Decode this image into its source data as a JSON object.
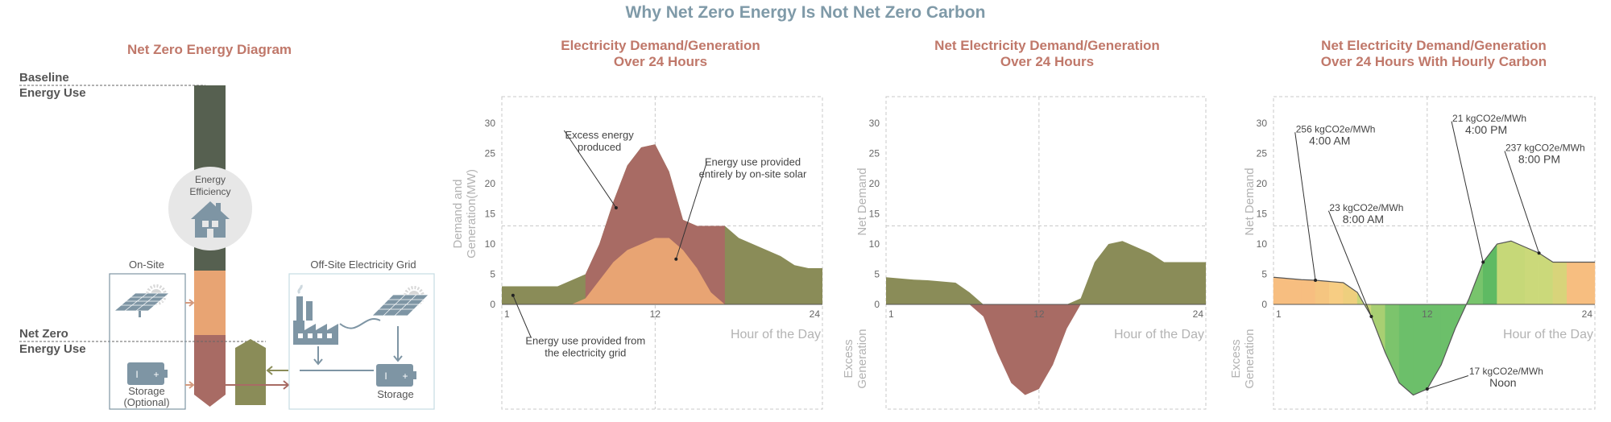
{
  "main_title": "Why Net Zero Energy Is Not Net Zero Carbon",
  "colors": {
    "title": "#7f9aa8",
    "panel_title": "#c0786a",
    "grid_olive": "#8a8c58",
    "demand_red": "#a86b64",
    "solar_orange": "#e8a473",
    "baseline_green": "#566050",
    "slate": "#7e95a4",
    "axis_gray": "#c9c9c9",
    "label_gray": "#b3b3b3"
  },
  "diagram": {
    "title": "Net Zero Energy Diagram",
    "baseline_label": [
      "Baseline",
      "Energy Use"
    ],
    "net_zero_label": [
      "Net Zero",
      "Energy Use"
    ],
    "efficiency_label": [
      "Energy",
      "Efficiency"
    ],
    "onsite_label": "On-Site",
    "onsite_storage_label": [
      "Storage",
      "(Optional)"
    ],
    "offsite_label": "Off-Site Electricity Grid",
    "offsite_storage_label": "Storage",
    "icons": [
      "house-icon",
      "solar-panel-icon",
      "battery-icon",
      "factory-icon"
    ]
  },
  "chart_data": [
    {
      "type": "area",
      "title": [
        "Electricity Demand/Generation",
        "Over 24 Hours"
      ],
      "ylabel": [
        "Demand and",
        "Generation(MW)"
      ],
      "xlabel": "Hour of the Day",
      "xlim": [
        1,
        24
      ],
      "ylim": [
        0,
        30
      ],
      "y_ticks": [
        "0",
        "5",
        "10",
        "15",
        "20",
        "25",
        "30"
      ],
      "x_ticks": [
        "1",
        "12",
        "24"
      ],
      "grid": "dashed",
      "series": [
        {
          "x": [
            1,
            2,
            3,
            4,
            5,
            6,
            7,
            8,
            9,
            10,
            11,
            12,
            13,
            14,
            15,
            16,
            17,
            18,
            19,
            20,
            21,
            22,
            23,
            24
          ],
          "y": [
            3,
            3,
            3,
            3,
            3,
            4,
            5,
            10,
            17,
            23,
            26,
            26.5,
            22,
            14,
            13,
            13,
            13,
            11,
            10,
            9,
            8,
            6.5,
            6,
            6
          ]
        },
        {
          "x": [
            1,
            2,
            3,
            4,
            5,
            6,
            7,
            8,
            9,
            10,
            11,
            12,
            13,
            14,
            15,
            16,
            17,
            18,
            19,
            20,
            21,
            22,
            23,
            24
          ],
          "y": [
            0,
            0,
            0,
            0,
            0,
            0,
            1,
            4,
            7,
            9,
            10,
            11,
            11,
            9,
            6,
            2,
            0,
            0,
            0,
            0,
            0,
            0,
            0,
            0
          ]
        }
      ],
      "annotations": [
        {
          "text": [
            "Excess energy",
            "produced"
          ],
          "x": 9.2,
          "y": 16
        },
        {
          "text": [
            "Energy use provided",
            "entirely by on-site solar"
          ],
          "x": 13.5,
          "y": 7.5
        },
        {
          "text": [
            "Energy use provided from",
            "the electricity grid"
          ],
          "x": 1.8,
          "y": 1.5
        }
      ]
    },
    {
      "type": "area",
      "title": [
        "Net Electricity Demand/Generation",
        "Over 24 Hours"
      ],
      "ylabel": "Net Demand",
      "ylabel_negative": [
        "Excess",
        "Generation"
      ],
      "xlabel": "Hour of the Day",
      "xlim": [
        1,
        24
      ],
      "ylim": [
        -16,
        30
      ],
      "y_ticks": [
        "0",
        "5",
        "10",
        "15",
        "20",
        "25",
        "30"
      ],
      "x_ticks": [
        "1",
        "12",
        "24"
      ],
      "grid": "dashed",
      "series": [
        {
          "x": [
            1,
            2,
            3,
            4,
            5,
            6,
            7,
            8,
            9,
            10,
            11,
            12,
            13,
            14,
            15,
            16,
            17,
            18,
            19,
            20,
            21,
            22,
            23,
            24
          ],
          "y": [
            4.5,
            4.3,
            4.1,
            4.0,
            3.8,
            3.6,
            2.0,
            -2,
            -8,
            -13,
            -15,
            -14,
            -10,
            -4,
            1,
            7,
            10,
            10.5,
            9.5,
            8.5,
            7,
            7,
            7,
            7
          ]
        }
      ]
    },
    {
      "type": "area",
      "title": [
        "Net Electricity Demand/Generation",
        "Over 24 Hours With Hourly Carbon"
      ],
      "ylabel": "Net Demand",
      "ylabel_negative": [
        "Excess",
        "Generation"
      ],
      "xlabel": "Hour of the Day",
      "xlim": [
        1,
        24
      ],
      "ylim": [
        -16,
        30
      ],
      "y_ticks": [
        "0",
        "5",
        "10",
        "15",
        "20",
        "25",
        "30"
      ],
      "x_ticks": [
        "1",
        "12",
        "24"
      ],
      "grid": "dashed",
      "series": [
        {
          "x": [
            1,
            2,
            3,
            4,
            5,
            6,
            7,
            8,
            9,
            10,
            11,
            12,
            13,
            14,
            15,
            16,
            17,
            18,
            19,
            20,
            21,
            22,
            23,
            24
          ],
          "y": [
            4.5,
            4.3,
            4.1,
            4.0,
            3.8,
            3.6,
            2.0,
            -2,
            -8,
            -13,
            -15,
            -14,
            -10,
            -4,
            1,
            7,
            10,
            10.5,
            9.5,
            8.5,
            7,
            7,
            7,
            7
          ]
        }
      ],
      "hourly_carbon_colors": [
        "#f7be80",
        "#f7be80",
        "#f7be80",
        "#f5c580",
        "#f7cd83",
        "#eecf7e",
        "#c8d578",
        "#a8cf72",
        "#7cc46c",
        "#6cbf6a",
        "#6cbf6a",
        "#6cbf6a",
        "#6cbf6a",
        "#6cbf6a",
        "#78c46c",
        "#5fba63",
        "#c6d878",
        "#c6d878",
        "#cbd97a",
        "#cbd97a",
        "#d8d47a",
        "#f7be80",
        "#f7be80",
        "#f7be80"
      ],
      "annotations": [
        {
          "text": [
            "256 kgCO2e/MWh",
            "4:00 AM"
          ],
          "x": 4,
          "y": 4.0
        },
        {
          "text": [
            "23 kgCO2e/MWh",
            "8:00 AM"
          ],
          "x": 8,
          "y": -2
        },
        {
          "text": [
            "21 kgCO2e/MWh",
            "4:00 PM"
          ],
          "x": 16,
          "y": 7
        },
        {
          "text": [
            "237 kgCO2e/MWh",
            "8:00 PM"
          ],
          "x": 20,
          "y": 8.5
        },
        {
          "text": [
            "17 kgCO2e/MWh",
            "Noon"
          ],
          "x": 12,
          "y": -14
        }
      ]
    }
  ]
}
